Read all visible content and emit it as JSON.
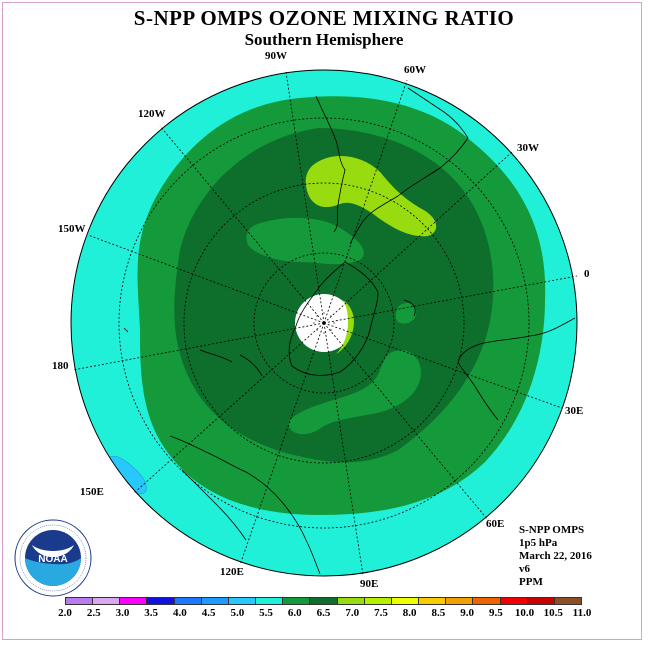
{
  "title": "S-NPP OMPS OZONE MIXING RATIO",
  "subtitle": "Southern Hemisphere",
  "longitude_labels": [
    "90W",
    "60W",
    "30W",
    "0",
    "30E",
    "60E",
    "90E",
    "120E",
    "150E",
    "180",
    "150W",
    "120W"
  ],
  "info": {
    "instrument": "S-NPP OMPS",
    "level": "1p5 hPa",
    "date": "March 22, 2016",
    "version": "v6",
    "units": "PPM"
  },
  "colorbar": {
    "ticks": [
      "2.0",
      "2.5",
      "3.0",
      "3.5",
      "4.0",
      "4.5",
      "5.0",
      "5.5",
      "6.0",
      "6.5",
      "7.0",
      "7.5",
      "8.0",
      "8.5",
      "9.0",
      "9.5",
      "10.0",
      "10.5",
      "11.0"
    ],
    "colors": [
      "#b87cf0",
      "#d8a8f0",
      "#ff00ff",
      "#1010e0",
      "#1e78ff",
      "#1e9bff",
      "#28c8ff",
      "#20f0d8",
      "#149a3a",
      "#0e6e2c",
      "#98dc10",
      "#b4f000",
      "#f0ff00",
      "#f8cc00",
      "#f0a000",
      "#f06400",
      "#f00000",
      "#c80000",
      "#8c5028"
    ]
  },
  "map": {
    "field_colors": {
      "band_5_5_6_0": "#20f0d8",
      "band_5_0_5_5": "#28c8ff",
      "band_6_0_6_5": "#149a3a",
      "band_6_5_7_0": "#0e6e2c",
      "band_7_0_7_5": "#98dc10",
      "missing": "#ffffff"
    }
  },
  "logo": {
    "text": "NOAA",
    "ring_text": "NATIONAL OCEANIC AND ATMOSPHERIC ADMINISTRATION · U.S. DEPARTMENT OF COMMERCE"
  }
}
